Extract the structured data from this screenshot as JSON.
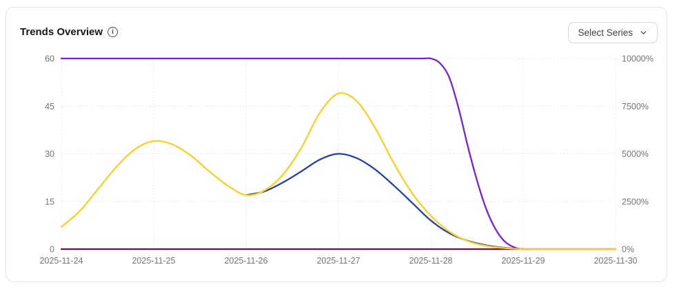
{
  "card": {
    "title": "Trends Overview",
    "info_icon_glyph": "i",
    "select_series": {
      "label": "Select Series"
    }
  },
  "chart_data": {
    "type": "line",
    "title": "Trends Overview",
    "x_axis": {
      "tick_labels": [
        "2025-11-24",
        "2025-11-25",
        "2025-11-26",
        "2025-11-27",
        "2025-11-28",
        "2025-11-29",
        "2025-11-30"
      ],
      "tick_values": [
        0,
        1,
        2,
        3,
        4,
        5,
        6
      ],
      "range": [
        0,
        6
      ]
    },
    "left_axis": {
      "tick_labels": [
        "0",
        "15",
        "30",
        "45",
        "60"
      ],
      "tick_values": [
        0,
        15,
        30,
        45,
        60
      ],
      "range": [
        0,
        60
      ]
    },
    "right_axis": {
      "tick_labels": [
        "0%",
        "2500%",
        "5000%",
        "7500%",
        "10000%"
      ],
      "tick_values": [
        0,
        2500,
        5000,
        7500,
        10000
      ],
      "range": [
        0,
        10000
      ]
    },
    "grid": {
      "show": true,
      "style": "dotted",
      "color": "#e4e4e7"
    },
    "axis_label_color": "#74747e",
    "legend": "hidden",
    "series": [
      {
        "name": "maroon-series",
        "color": "#7A0C3C",
        "axis": "right",
        "x": [
          0,
          6
        ],
        "y": [
          0,
          0
        ]
      },
      {
        "name": "blue-series",
        "color": "#2340A9",
        "axis": "left",
        "x": [
          2,
          2.2,
          2.4,
          2.6,
          2.8,
          3,
          3.2,
          3.4,
          3.6,
          3.8,
          4,
          4.2,
          4.4,
          4.6,
          4.8,
          5
        ],
        "y": [
          17,
          18.2,
          21,
          24.5,
          28.2,
          30,
          28.6,
          25,
          20,
          14.5,
          9,
          5,
          2.6,
          1.2,
          0.4,
          0
        ]
      },
      {
        "name": "purple-series",
        "color": "#7B1EDB",
        "axis": "right",
        "x": [
          0,
          0.5,
          1,
          1.5,
          2,
          2.5,
          3,
          3.5,
          3.9,
          4,
          4.1,
          4.2,
          4.3,
          4.4,
          4.5,
          4.6,
          4.7,
          4.8,
          4.9,
          5,
          5.25,
          5.5,
          6
        ],
        "y": [
          10000,
          10000,
          10000,
          10000,
          10000,
          10000,
          10000,
          10000,
          10000,
          10000,
          9750,
          9000,
          7400,
          5400,
          3600,
          2100,
          1050,
          400,
          100,
          0,
          0,
          0,
          0
        ]
      },
      {
        "name": "yellow-series",
        "color": "#FCD020",
        "axis": "left",
        "x": [
          0,
          0.2,
          0.4,
          0.6,
          0.8,
          1,
          1.2,
          1.4,
          1.6,
          1.8,
          2,
          2.2,
          2.4,
          2.6,
          2.8,
          3,
          3.2,
          3.4,
          3.6,
          3.8,
          4,
          4.2,
          4.4,
          4.6,
          4.8,
          5,
          5.25,
          5.5,
          5.75,
          6
        ],
        "y": [
          7,
          12,
          19,
          26,
          31.5,
          34,
          33,
          29.5,
          24.5,
          20,
          17,
          18.5,
          23.5,
          32,
          43,
          49,
          46.5,
          38,
          27,
          17.5,
          10.5,
          5.5,
          2.5,
          1,
          0.3,
          0,
          0,
          0,
          0,
          0
        ]
      }
    ]
  }
}
